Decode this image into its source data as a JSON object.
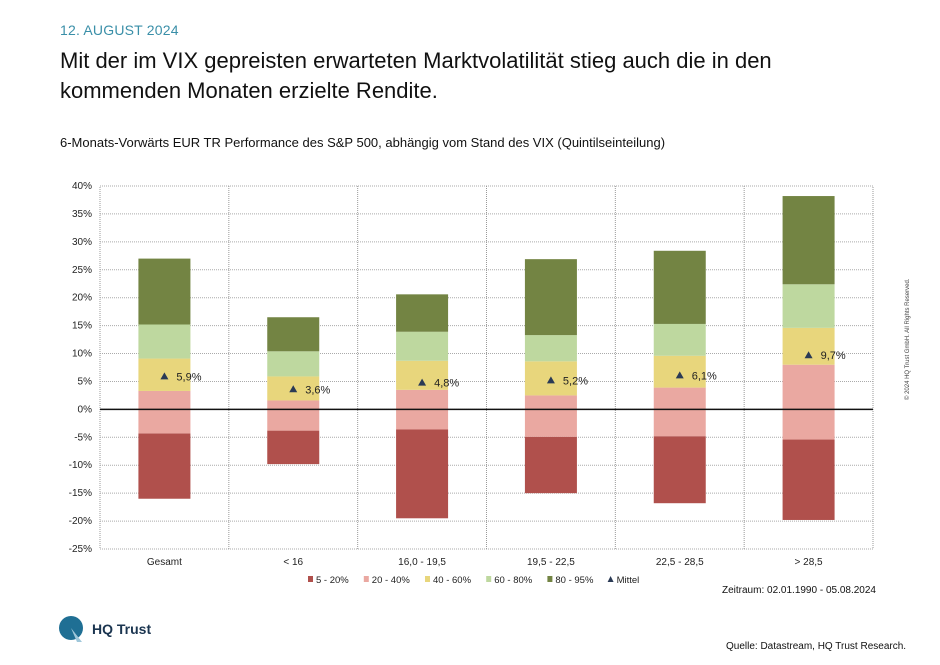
{
  "header": {
    "date": "12. AUGUST 2024",
    "headline": "Mit der im VIX gepreisten erwarteten Marktvolatilität stieg auch die in den kommenden Monaten erzielte Rendite.",
    "subtitle": "6-Monats-Vorwärts EUR TR Performance des S&P 500, abhängig vom Stand des VIX (Quintilseinteilung)"
  },
  "chart_data": {
    "type": "bar",
    "title": "6-Monats-Vorwärts EUR TR Performance des S&P 500, abhängig vom Stand des VIX (Quintilseinteilung)",
    "categories": [
      "Gesamt",
      "< 16",
      "16,0 - 19,5",
      "19,5 - 22,5",
      "22,5 - 28,5",
      "> 28,5"
    ],
    "percentile_bounds": {
      "p5": [
        -16.0,
        -9.8,
        -19.5,
        -15.0,
        -16.8,
        -19.8
      ],
      "p20": [
        -4.3,
        -3.8,
        -3.6,
        -4.9,
        -4.8,
        -5.4
      ],
      "p40": [
        3.3,
        1.6,
        3.5,
        2.5,
        3.9,
        8.0
      ],
      "p60": [
        9.1,
        5.9,
        8.7,
        8.6,
        9.6,
        14.6
      ],
      "p80": [
        15.2,
        10.4,
        13.9,
        13.3,
        15.3,
        22.4
      ],
      "p95": [
        27.0,
        16.5,
        20.6,
        26.9,
        28.4,
        38.2
      ]
    },
    "series": [
      {
        "name": "5 - 20%",
        "color": "#b0504c"
      },
      {
        "name": "20 - 40%",
        "color": "#eaa8a1"
      },
      {
        "name": "40 - 60%",
        "color": "#e8d67c"
      },
      {
        "name": "60 - 80%",
        "color": "#bed89f"
      },
      {
        "name": "80 - 95%",
        "color": "#738443"
      }
    ],
    "mean": {
      "name": "Mittel",
      "values": [
        5.9,
        3.6,
        4.8,
        5.2,
        6.1,
        9.7
      ],
      "labels": [
        "5,9%",
        "3,6%",
        "4,8%",
        "5,2%",
        "6,1%",
        "9,7%"
      ],
      "color": "#2a3a55"
    },
    "ylim": [
      -25,
      40
    ],
    "yticks": [
      40,
      35,
      30,
      25,
      20,
      15,
      10,
      5,
      0,
      -5,
      -10,
      -15,
      -20,
      -25
    ],
    "ytick_labels": [
      "40%",
      "35%",
      "30%",
      "25%",
      "20%",
      "15%",
      "10%",
      "5%",
      "0%",
      "-5%",
      "-10%",
      "-15%",
      "-20%",
      "-25%"
    ],
    "grid": true,
    "legend": "bottom"
  },
  "footer": {
    "period": "Zeitraum: 02.01.1990 - 05.08.2024",
    "source": "Quelle: Datastream, HQ Trust Research.",
    "copyright": "© 2024 HQ Trust GmbH. All Rights Reserved.",
    "logo_text": "HQ Trust"
  }
}
